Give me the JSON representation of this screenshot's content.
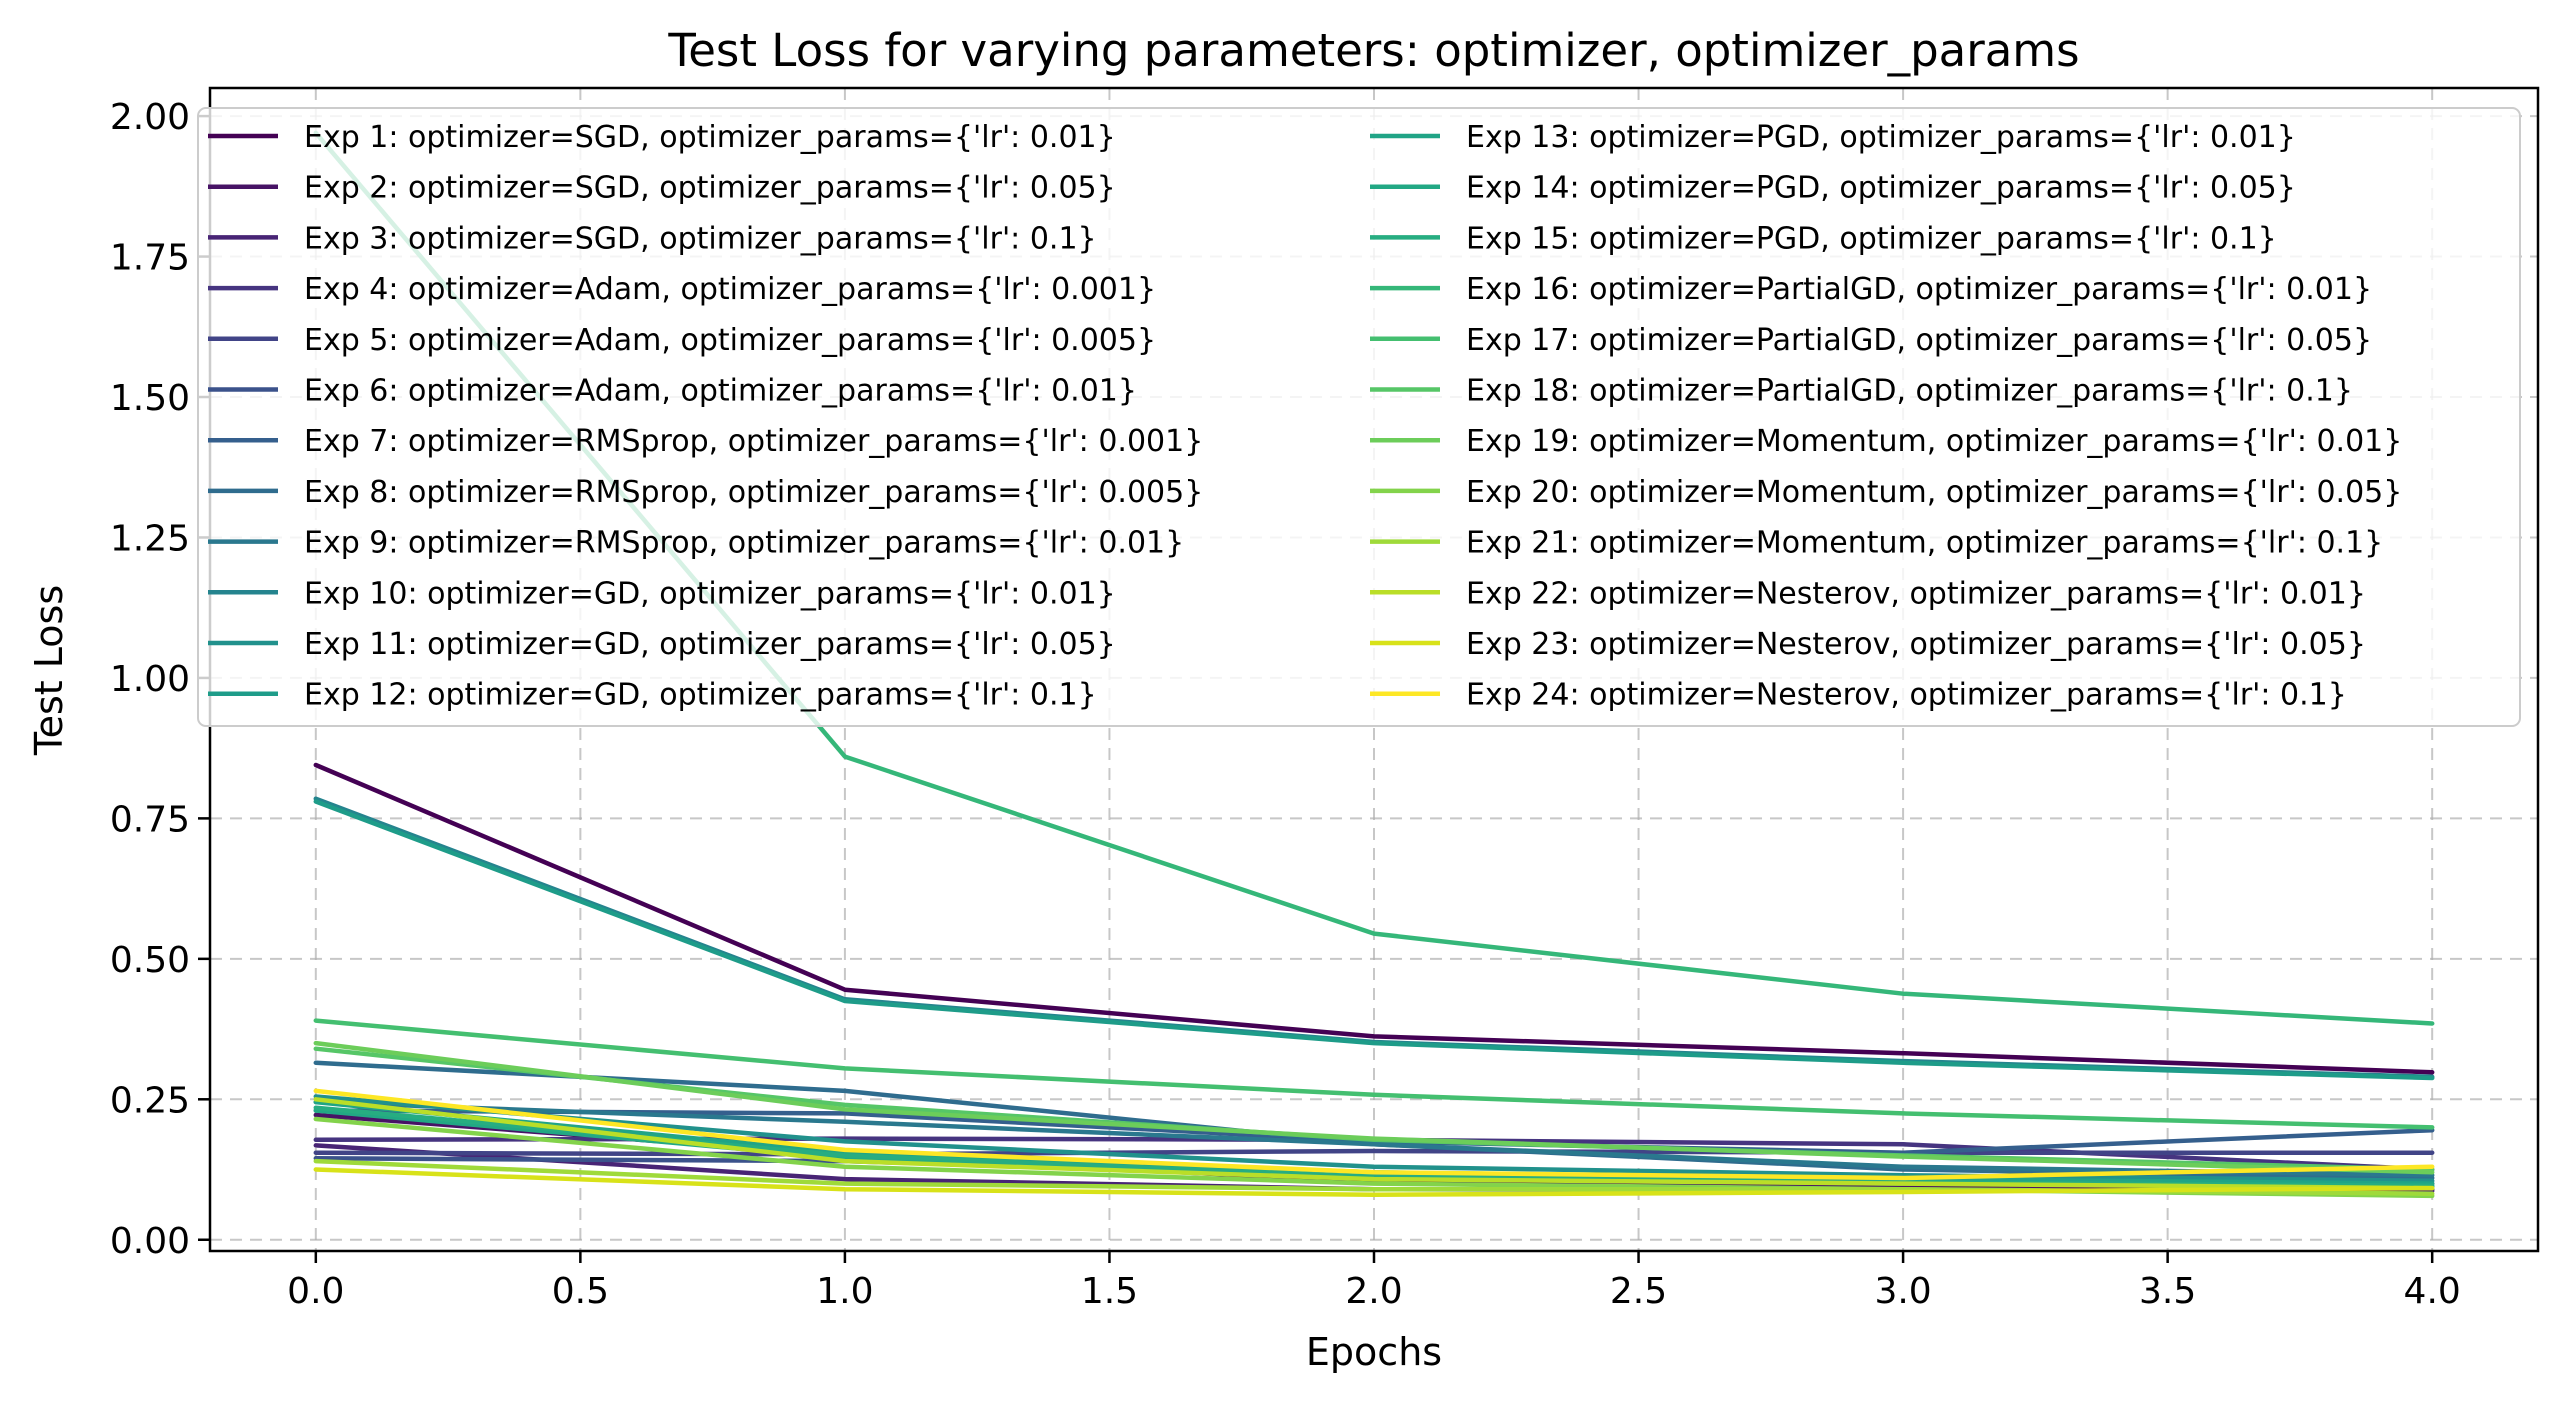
{
  "chart_data": {
    "type": "line",
    "title": "Test Loss for varying parameters: optimizer, optimizer_params",
    "xlabel": "Epochs",
    "ylabel": "Test Loss",
    "xlim": [
      -0.2,
      4.2
    ],
    "ylim": [
      -0.02,
      2.05
    ],
    "xticks": [
      0.0,
      0.5,
      1.0,
      1.5,
      2.0,
      2.5,
      3.0,
      3.5,
      4.0
    ],
    "xtick_labels": [
      "0.0",
      "0.5",
      "1.0",
      "1.5",
      "2.0",
      "2.5",
      "3.0",
      "3.5",
      "4.0"
    ],
    "yticks": [
      0.0,
      0.25,
      0.5,
      0.75,
      1.0,
      1.25,
      1.5,
      1.75,
      2.0
    ],
    "ytick_labels": [
      "0.00",
      "0.25",
      "0.50",
      "0.75",
      "1.00",
      "1.25",
      "1.50",
      "1.75",
      "2.00"
    ],
    "grid": true,
    "legend_position": "top",
    "legend_columns": 2,
    "x": [
      0,
      1,
      2,
      3,
      4
    ],
    "series": [
      {
        "name": "Exp 1: optimizer=SGD, optimizer_params={'lr': 0.01}",
        "color": "#440154",
        "values": [
          0.845,
          0.445,
          0.362,
          0.332,
          0.298
        ]
      },
      {
        "name": "Exp 2: optimizer=SGD, optimizer_params={'lr': 0.05}",
        "color": "#471365",
        "values": [
          0.222,
          0.15,
          0.103,
          0.096,
          0.09
        ]
      },
      {
        "name": "Exp 3: optimizer=SGD, optimizer_params={'lr': 0.1}",
        "color": "#482475",
        "values": [
          0.168,
          0.108,
          0.09,
          0.088,
          0.087
        ]
      },
      {
        "name": "Exp 4: optimizer=Adam, optimizer_params={'lr': 0.001}",
        "color": "#463480",
        "values": [
          0.178,
          0.18,
          0.178,
          0.17,
          0.125
        ]
      },
      {
        "name": "Exp 5: optimizer=Adam, optimizer_params={'lr': 0.005}",
        "color": "#414487",
        "values": [
          0.155,
          0.152,
          0.158,
          0.155,
          0.155
        ]
      },
      {
        "name": "Exp 6: optimizer=Adam, optimizer_params={'lr': 0.01}",
        "color": "#3b528b",
        "values": [
          0.145,
          0.14,
          0.112,
          0.105,
          0.1
        ]
      },
      {
        "name": "Exp 7: optimizer=RMSprop, optimizer_params={'lr': 0.001}",
        "color": "#355f8d",
        "values": [
          0.23,
          0.225,
          0.175,
          0.155,
          0.195
        ]
      },
      {
        "name": "Exp 8: optimizer=RMSprop, optimizer_params={'lr': 0.005}",
        "color": "#2f6c8e",
        "values": [
          0.315,
          0.265,
          0.17,
          0.125,
          0.11
        ]
      },
      {
        "name": "Exp 9: optimizer=RMSprop, optimizer_params={'lr': 0.01}",
        "color": "#2a788e",
        "values": [
          0.245,
          0.21,
          0.17,
          0.13,
          0.115
        ]
      },
      {
        "name": "Exp 10: optimizer=GD, optimizer_params={'lr': 0.01}",
        "color": "#25848e",
        "values": [
          0.785,
          0.428,
          0.352,
          0.318,
          0.29
        ]
      },
      {
        "name": "Exp 11: optimizer=GD, optimizer_params={'lr': 0.05}",
        "color": "#21918c",
        "values": [
          0.255,
          0.175,
          0.13,
          0.115,
          0.105
        ]
      },
      {
        "name": "Exp 12: optimizer=GD, optimizer_params={'lr': 0.1}",
        "color": "#1e9c89",
        "values": [
          0.78,
          0.425,
          0.35,
          0.315,
          0.288
        ]
      },
      {
        "name": "Exp 13: optimizer=PGD, optimizer_params={'lr': 0.01}",
        "color": "#20a486",
        "values": [
          0.245,
          0.155,
          0.12,
          0.108,
          0.1
        ]
      },
      {
        "name": "Exp 14: optimizer=PGD, optimizer_params={'lr': 0.05}",
        "color": "#22a884",
        "values": [
          0.23,
          0.145,
          0.11,
          0.1,
          0.095
        ]
      },
      {
        "name": "Exp 15: optimizer=PGD, optimizer_params={'lr': 0.1}",
        "color": "#27ad81",
        "values": [
          0.235,
          0.15,
          0.112,
          0.102,
          0.096
        ]
      },
      {
        "name": "Exp 16: optimizer=PartialGD, optimizer_params={'lr': 0.01}",
        "color": "#35b779",
        "values": [
          1.97,
          0.86,
          0.545,
          0.438,
          0.385
        ]
      },
      {
        "name": "Exp 17: optimizer=PartialGD, optimizer_params={'lr': 0.05}",
        "color": "#44bf70",
        "values": [
          0.39,
          0.305,
          0.258,
          0.225,
          0.2
        ]
      },
      {
        "name": "Exp 18: optimizer=PartialGD, optimizer_params={'lr': 0.1}",
        "color": "#56c667",
        "values": [
          0.34,
          0.24,
          0.178,
          0.15,
          0.125
        ]
      },
      {
        "name": "Exp 19: optimizer=Momentum, optimizer_params={'lr': 0.01}",
        "color": "#6ccd5a",
        "values": [
          0.35,
          0.232,
          0.18,
          0.148,
          0.12
        ]
      },
      {
        "name": "Exp 20: optimizer=Momentum, optimizer_params={'lr': 0.05}",
        "color": "#83d34b",
        "values": [
          0.215,
          0.13,
          0.1,
          0.09,
          0.078
        ]
      },
      {
        "name": "Exp 21: optimizer=Momentum, optimizer_params={'lr': 0.1}",
        "color": "#9fda3a",
        "values": [
          0.14,
          0.1,
          0.09,
          0.09,
          0.082
        ]
      },
      {
        "name": "Exp 22: optimizer=Nesterov, optimizer_params={'lr': 0.01}",
        "color": "#bade28",
        "values": [
          0.25,
          0.14,
          0.108,
          0.1,
          0.092
        ]
      },
      {
        "name": "Exp 23: optimizer=Nesterov, optimizer_params={'lr': 0.05}",
        "color": "#d8e219",
        "values": [
          0.125,
          0.09,
          0.08,
          0.085,
          0.092
        ]
      },
      {
        "name": "Exp 24: optimizer=Nesterov, optimizer_params={'lr': 0.1}",
        "color": "#fde725",
        "values": [
          0.265,
          0.16,
          0.12,
          0.11,
          0.13
        ]
      }
    ]
  }
}
